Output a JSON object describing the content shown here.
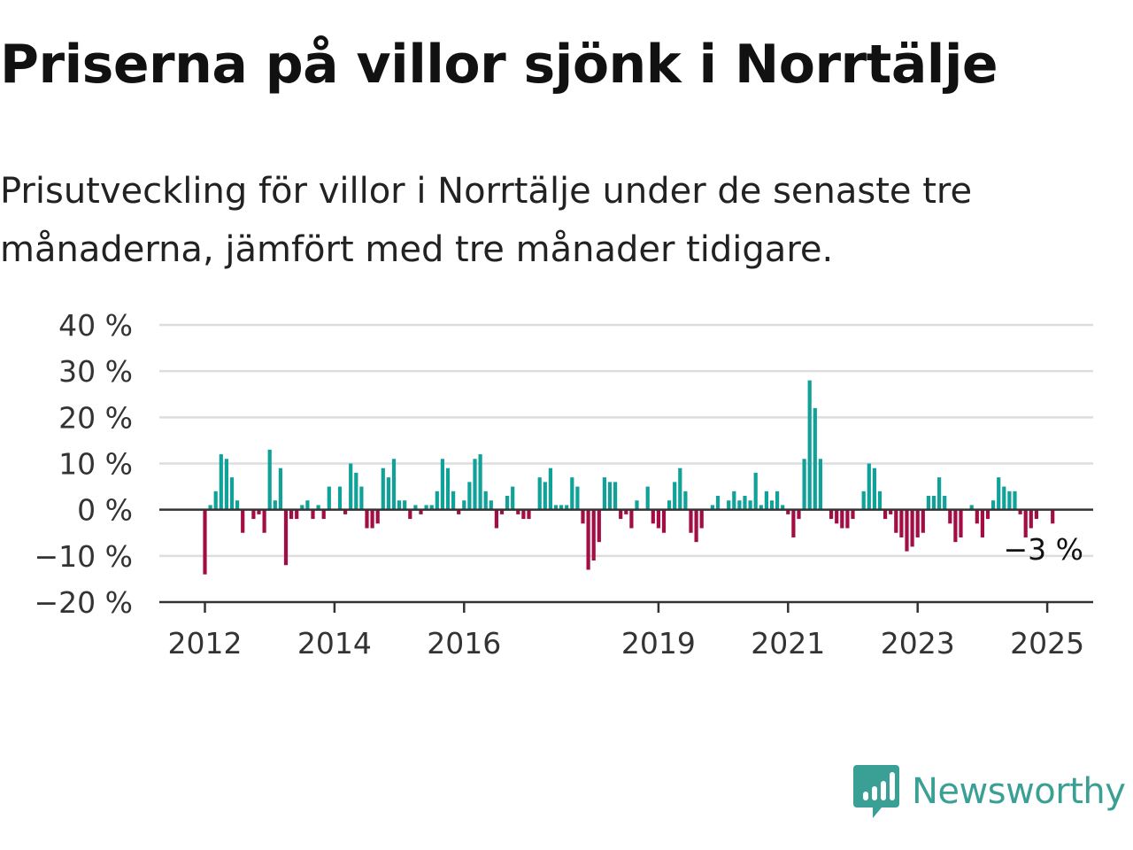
{
  "header": {
    "title": "Priserna på villor sjönk i Norrtälje",
    "subtitle": "Prisutveckling för villor i Norrtälje under de senaste tre månaderna, jämfört med tre månader tidigare."
  },
  "brand": {
    "name": "Newsworthy",
    "color": "#3a9f94"
  },
  "colors": {
    "positive": "#10a199",
    "negative": "#a30d44",
    "grid": "#dddddd",
    "axis": "#333333"
  },
  "chart_data": {
    "type": "bar",
    "x_start": "2012-01",
    "frequency": "monthly",
    "ylim": [
      -20,
      40
    ],
    "yticks": [
      -20,
      -10,
      0,
      10,
      20,
      30,
      40
    ],
    "ytick_labels": [
      "−20 %",
      "−10 %",
      "0 %",
      "10 %",
      "20 %",
      "30 %",
      "40 %"
    ],
    "xticks": [
      "2012-01",
      "2014-01",
      "2016-01",
      "2019-01",
      "2021-01",
      "2023-01",
      "2025-01"
    ],
    "xtick_labels": [
      "2012",
      "2014",
      "2016",
      "2019",
      "2021",
      "2023",
      "2025"
    ],
    "grid": true,
    "end_label": "−3 %",
    "values": [
      -14,
      1,
      4,
      12,
      11,
      7,
      2,
      -5,
      0,
      -2,
      -1,
      -5,
      13,
      2,
      9,
      -12,
      -2,
      -2,
      1,
      2,
      -2,
      1,
      -2,
      5,
      0,
      5,
      -1,
      10,
      8,
      5,
      -4,
      -4,
      -3,
      9,
      7,
      11,
      2,
      2,
      -2,
      1,
      -1,
      1,
      1,
      4,
      11,
      9,
      4,
      -1,
      2,
      6,
      11,
      12,
      4,
      2,
      -4,
      -1,
      3,
      5,
      -1,
      -2,
      -2,
      0,
      7,
      6,
      9,
      1,
      1,
      1,
      7,
      5,
      -3,
      -13,
      -11,
      -7,
      7,
      6,
      6,
      -2,
      -1,
      -4,
      2,
      0,
      5,
      -3,
      -4,
      -5,
      2,
      6,
      9,
      4,
      -5,
      -7,
      -4,
      0,
      1,
      3,
      0,
      2,
      4,
      2,
      3,
      2,
      8,
      1,
      4,
      2,
      4,
      1,
      -1,
      -6,
      -2,
      11,
      28,
      22,
      11,
      0,
      -2,
      -3,
      -4,
      -4,
      -2,
      0,
      4,
      10,
      9,
      4,
      -2,
      -1,
      -5,
      -6,
      -9,
      -8,
      -6,
      -5,
      3,
      3,
      7,
      3,
      -3,
      -7,
      -6,
      0,
      1,
      -3,
      -6,
      -2,
      2,
      7,
      5,
      4,
      4,
      -1,
      -6,
      -4,
      -2,
      0,
      0,
      -3
    ]
  }
}
